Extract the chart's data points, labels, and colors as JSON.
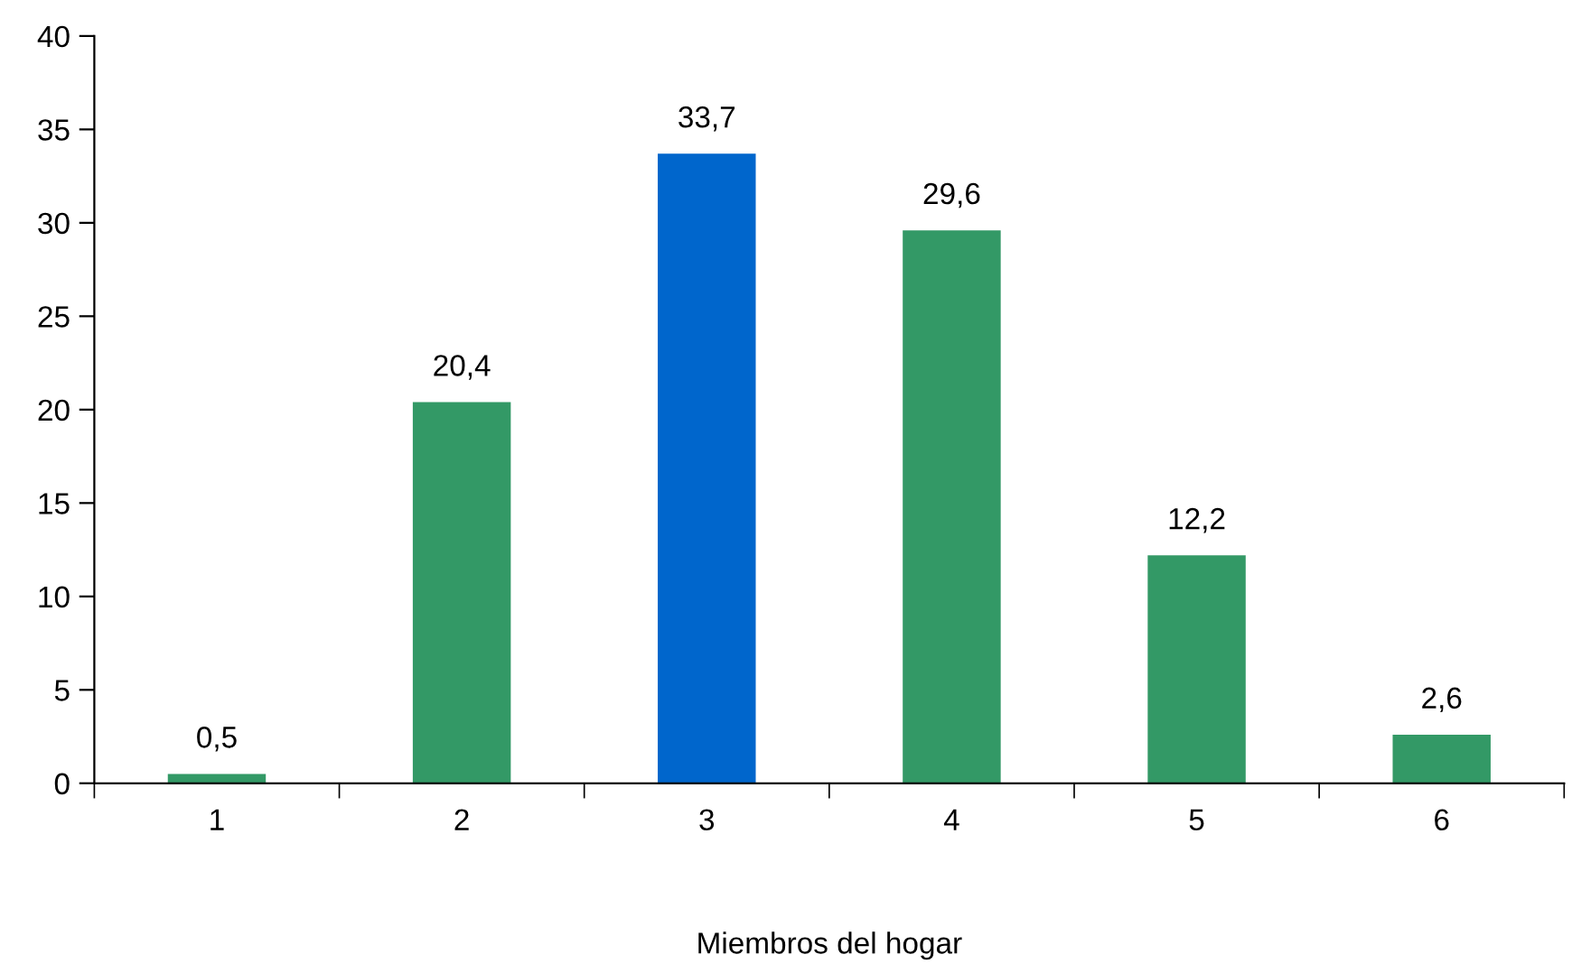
{
  "chart_data": {
    "type": "bar",
    "xlabel": "Miembros del hogar",
    "categories": [
      "1",
      "2",
      "3",
      "4",
      "5",
      "6"
    ],
    "values": [
      0.5,
      20.4,
      33.7,
      29.6,
      12.2,
      2.6
    ],
    "colors": [
      "#339966",
      "#339966",
      "#0066cc",
      "#339966",
      "#339966",
      "#339966"
    ],
    "value_labels": [
      "0,5",
      "20,4",
      "33,7",
      "29,6",
      "12,2",
      "2,6"
    ],
    "ylim": [
      0,
      40
    ],
    "yticks": [
      0,
      5,
      10,
      15,
      20,
      25,
      30,
      35,
      40
    ],
    "grid": false,
    "legend": false
  }
}
